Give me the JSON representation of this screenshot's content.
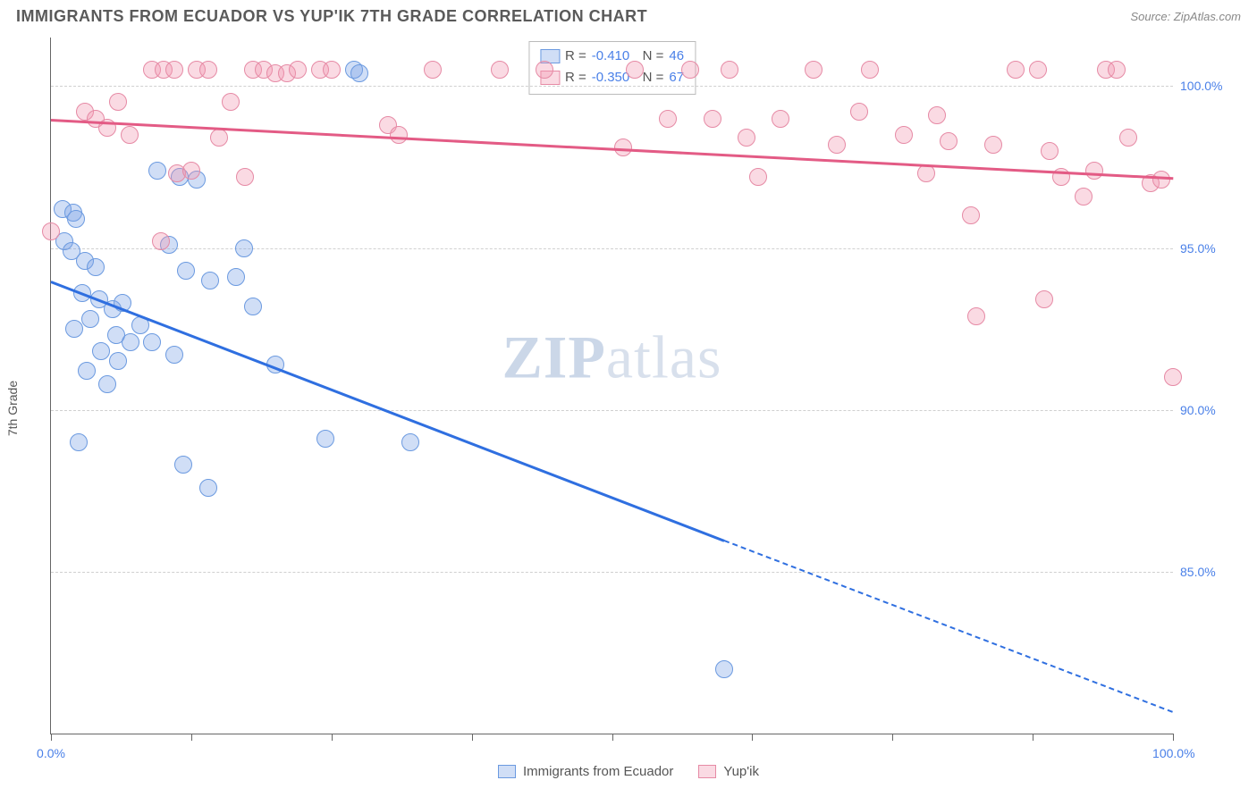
{
  "header": {
    "title": "IMMIGRANTS FROM ECUADOR VS YUP'IK 7TH GRADE CORRELATION CHART",
    "source": "Source: ZipAtlas.com"
  },
  "watermark": {
    "left": "ZIP",
    "right": "atlas"
  },
  "chart": {
    "type": "scatter",
    "ylabel": "7th Grade",
    "background_color": "#ffffff",
    "grid_color": "#d0d0d0",
    "axis_color": "#666666",
    "tick_label_color": "#4a80e8",
    "xlim": [
      0,
      100
    ],
    "ylim": [
      80,
      101.5
    ],
    "yticks": [
      {
        "v": 85,
        "label": "85.0%"
      },
      {
        "v": 90,
        "label": "90.0%"
      },
      {
        "v": 95,
        "label": "95.0%"
      },
      {
        "v": 100,
        "label": "100.0%"
      }
    ],
    "xticks_minor": [
      0,
      12.5,
      25,
      37.5,
      50,
      62.5,
      75,
      87.5,
      100
    ],
    "xtick_labels": [
      {
        "v": 0,
        "label": "0.0%"
      },
      {
        "v": 100,
        "label": "100.0%",
        "align": "right"
      }
    ],
    "point_radius": 10,
    "point_border_width": 1.5,
    "series": [
      {
        "name": "Immigrants from Ecuador",
        "fill": "rgba(120,160,230,0.35)",
        "stroke": "#6b9ae0",
        "trend_color": "#2f6fe0",
        "R": "-0.410",
        "N": "46",
        "trend": {
          "x1": 0,
          "y1": 94.0,
          "x2": 60,
          "y2": 86.0,
          "solid_to_x": 60
        },
        "trend_extend": {
          "x1": 60,
          "y1": 86.0,
          "x2": 100,
          "y2": 80.7
        },
        "points": [
          [
            1,
            96.2
          ],
          [
            2,
            96.1
          ],
          [
            2.2,
            95.9
          ],
          [
            1.2,
            95.2
          ],
          [
            1.8,
            94.9
          ],
          [
            3,
            94.6
          ],
          [
            4,
            94.4
          ],
          [
            2.8,
            93.6
          ],
          [
            4.3,
            93.4
          ],
          [
            5.5,
            93.1
          ],
          [
            6.4,
            93.3
          ],
          [
            3.5,
            92.8
          ],
          [
            2.1,
            92.5
          ],
          [
            5.8,
            92.3
          ],
          [
            7.1,
            92.1
          ],
          [
            4.5,
            91.8
          ],
          [
            6.0,
            91.5
          ],
          [
            8.0,
            92.6
          ],
          [
            3.2,
            91.2
          ],
          [
            5.0,
            90.8
          ],
          [
            2.5,
            89.0
          ],
          [
            9.5,
            97.4
          ],
          [
            11.5,
            97.2
          ],
          [
            13.0,
            97.1
          ],
          [
            10.5,
            95.1
          ],
          [
            12.0,
            94.3
          ],
          [
            14.2,
            94.0
          ],
          [
            16.5,
            94.1
          ],
          [
            17.2,
            95.0
          ],
          [
            18.0,
            93.2
          ],
          [
            9.0,
            92.1
          ],
          [
            11.0,
            91.7
          ],
          [
            14.0,
            87.6
          ],
          [
            11.8,
            88.3
          ],
          [
            20.0,
            91.4
          ],
          [
            24.5,
            89.1
          ],
          [
            27.0,
            100.5
          ],
          [
            27.5,
            100.4
          ],
          [
            32.0,
            89.0
          ],
          [
            60.0,
            82.0
          ]
        ]
      },
      {
        "name": "Yup'ik",
        "fill": "rgba(240,150,175,0.35)",
        "stroke": "#e68aa5",
        "trend_color": "#e35b85",
        "R": "-0.350",
        "N": "67",
        "trend": {
          "x1": 0,
          "y1": 99.0,
          "x2": 100,
          "y2": 97.2,
          "solid_to_x": 100
        },
        "points": [
          [
            0,
            95.5
          ],
          [
            3,
            99.2
          ],
          [
            4,
            99.0
          ],
          [
            5,
            98.7
          ],
          [
            6,
            99.5
          ],
          [
            7,
            98.5
          ],
          [
            9,
            100.5
          ],
          [
            10,
            100.5
          ],
          [
            11,
            100.5
          ],
          [
            13,
            100.5
          ],
          [
            14,
            100.5
          ],
          [
            15,
            98.4
          ],
          [
            16,
            99.5
          ],
          [
            18,
            100.5
          ],
          [
            19,
            100.5
          ],
          [
            20,
            100.4
          ],
          [
            21,
            100.4
          ],
          [
            22,
            100.5
          ],
          [
            17.3,
            97.2
          ],
          [
            24,
            100.5
          ],
          [
            25,
            100.5
          ],
          [
            11.2,
            97.3
          ],
          [
            12.5,
            97.4
          ],
          [
            9.8,
            95.2
          ],
          [
            30,
            98.8
          ],
          [
            31,
            98.5
          ],
          [
            34,
            100.5
          ],
          [
            40,
            100.5
          ],
          [
            44,
            100.5
          ],
          [
            52,
            100.5
          ],
          [
            55,
            99.0
          ],
          [
            57,
            100.5
          ],
          [
            51,
            98.1
          ],
          [
            60.5,
            100.5
          ],
          [
            59,
            99.0
          ],
          [
            62,
            98.4
          ],
          [
            63,
            97.2
          ],
          [
            65,
            99.0
          ],
          [
            68,
            100.5
          ],
          [
            70,
            98.2
          ],
          [
            72,
            99.2
          ],
          [
            73,
            100.5
          ],
          [
            76,
            98.5
          ],
          [
            78,
            97.3
          ],
          [
            79,
            99.1
          ],
          [
            80,
            98.3
          ],
          [
            82,
            96.0
          ],
          [
            84,
            98.2
          ],
          [
            86,
            100.5
          ],
          [
            88,
            100.5
          ],
          [
            89,
            98.0
          ],
          [
            90,
            97.2
          ],
          [
            92,
            96.6
          ],
          [
            93,
            97.4
          ],
          [
            94,
            100.5
          ],
          [
            95,
            100.5
          ],
          [
            96,
            98.4
          ],
          [
            98,
            97.0
          ],
          [
            99,
            97.1
          ],
          [
            88.5,
            93.4
          ],
          [
            82.5,
            92.9
          ],
          [
            100,
            91.0
          ]
        ]
      }
    ],
    "bottom_legend": [
      {
        "label": "Immigrants from Ecuador",
        "fill": "rgba(120,160,230,0.35)",
        "stroke": "#6b9ae0"
      },
      {
        "label": "Yup'ik",
        "fill": "rgba(240,150,175,0.35)",
        "stroke": "#e68aa5"
      }
    ]
  }
}
